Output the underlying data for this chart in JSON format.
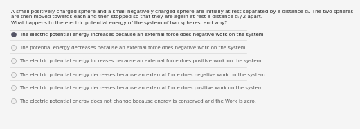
{
  "background_color": "#f5f5f5",
  "paragraph_line1": "A small positively charged sphere and a small negatively charged sphere are initially at rest separated by a distance dᵢ. The two spheres",
  "paragraph_line2": "are then moved towards each and then stopped so that they are again at rest a distance dᵢ / 2 apart.",
  "question": "What happens to the electric potential energy of the system of two spheres, and why?",
  "options": [
    "The electric potential energy increases because an external force does negative work on the system.",
    "The potential energy decreases because an external force does negative work on the system.",
    "The electric potential energy increases because an external force does positive work on the system.",
    "The electric potential energy decreases because an external force does negative work on the system.",
    "The electric potential energy decreases because an external force does positive work on the system.",
    "The electric potential energy does not change because energy is conserved and the Work is zero."
  ],
  "selected_index": 0,
  "para_fontsize": 5.2,
  "question_fontsize": 5.2,
  "option_fontsize": 5.0,
  "text_color": "#2a2a2a",
  "selected_text_color": "#1a1a1a",
  "unselected_text_color": "#555555",
  "divider_color": "#d0d0d0",
  "radio_selected_color": "#555566",
  "radio_unselected_edge": "#aaaaaa",
  "radio_unselected_fill": "#f0f0f0"
}
